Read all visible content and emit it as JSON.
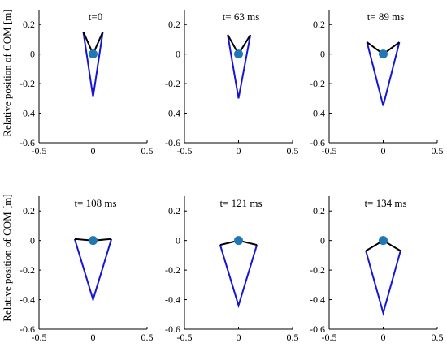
{
  "figure": {
    "ylabel": "Relative position of  COM  [m]"
  },
  "chart_data": [
    {
      "type": "line",
      "title": "t=0",
      "xlim": [
        -0.5,
        0.5
      ],
      "ylim": [
        -0.6,
        0.3
      ],
      "xticks": [
        "-0.5",
        "0",
        "0.5"
      ],
      "yticks": [
        "0.2",
        "0",
        "-0.2",
        "-0.4",
        "-0.6"
      ],
      "series": [
        {
          "color": "#1515d6",
          "x": [
            -0.09,
            0.0,
            0.09
          ],
          "y": [
            0.15,
            -0.29,
            0.15
          ]
        },
        {
          "color": "#000000",
          "x": [
            -0.09,
            0.0,
            0.09
          ],
          "y": [
            0.15,
            0.0,
            0.15
          ]
        }
      ],
      "com": {
        "x": 0,
        "y": 0,
        "color": "#1f77b4"
      }
    },
    {
      "type": "line",
      "title": "t= 63 ms",
      "xlim": [
        -0.5,
        0.5
      ],
      "ylim": [
        -0.6,
        0.3
      ],
      "xticks": [
        "-0.5",
        "0",
        "0.5"
      ],
      "yticks": [
        "0.2",
        "0",
        "-0.2",
        "-0.4",
        "-0.6"
      ],
      "series": [
        {
          "color": "#1515d6",
          "x": [
            -0.1,
            0.0,
            0.11
          ],
          "y": [
            0.13,
            -0.3,
            0.13
          ]
        },
        {
          "color": "#000000",
          "x": [
            -0.1,
            0.0,
            0.11
          ],
          "y": [
            0.13,
            0.0,
            0.13
          ]
        }
      ],
      "com": {
        "x": 0,
        "y": 0,
        "color": "#1f77b4"
      }
    },
    {
      "type": "line",
      "title": "t= 89 ms",
      "xlim": [
        -0.5,
        0.5
      ],
      "ylim": [
        -0.6,
        0.3
      ],
      "xticks": [
        "-0.5",
        "0",
        "0.5"
      ],
      "yticks": [
        "0.2",
        "0",
        "-0.2",
        "-0.4",
        "-0.6"
      ],
      "series": [
        {
          "color": "#1515d6",
          "x": [
            -0.15,
            0.0,
            0.15
          ],
          "y": [
            0.08,
            -0.35,
            0.08
          ]
        },
        {
          "color": "#000000",
          "x": [
            -0.15,
            0.0,
            0.15
          ],
          "y": [
            0.08,
            0.0,
            0.08
          ]
        }
      ],
      "com": {
        "x": 0,
        "y": 0,
        "color": "#1f77b4"
      }
    },
    {
      "type": "line",
      "title": "t= 108 ms",
      "xlim": [
        -0.5,
        0.5
      ],
      "ylim": [
        -0.6,
        0.3
      ],
      "xticks": [
        "-0.5",
        "0",
        "0.5"
      ],
      "yticks": [
        "0.2",
        "0",
        "-0.2",
        "-0.4",
        "-0.6"
      ],
      "series": [
        {
          "color": "#1515d6",
          "x": [
            -0.17,
            0.0,
            0.17
          ],
          "y": [
            0.01,
            -0.4,
            0.01
          ]
        },
        {
          "color": "#000000",
          "x": [
            -0.17,
            0.0,
            0.17
          ],
          "y": [
            0.01,
            0.0,
            0.01
          ]
        }
      ],
      "com": {
        "x": 0,
        "y": 0,
        "color": "#1f77b4"
      }
    },
    {
      "type": "line",
      "title": "t= 121 ms",
      "xlim": [
        -0.5,
        0.5
      ],
      "ylim": [
        -0.6,
        0.3
      ],
      "xticks": [
        "-0.5",
        "0",
        "0.5"
      ],
      "yticks": [
        "0.2",
        "0",
        "-0.2",
        "-0.4",
        "-0.6"
      ],
      "series": [
        {
          "color": "#1515d6",
          "x": [
            -0.17,
            0.0,
            0.17
          ],
          "y": [
            -0.03,
            -0.44,
            -0.03
          ]
        },
        {
          "color": "#000000",
          "x": [
            -0.17,
            0.0,
            0.17
          ],
          "y": [
            -0.03,
            0.0,
            -0.03
          ]
        }
      ],
      "com": {
        "x": 0,
        "y": 0,
        "color": "#1f77b4"
      }
    },
    {
      "type": "line",
      "title": "t= 134 ms",
      "xlim": [
        -0.5,
        0.5
      ],
      "ylim": [
        -0.6,
        0.3
      ],
      "xticks": [
        "-0.5",
        "0",
        "0.5"
      ],
      "yticks": [
        "0.2",
        "0",
        "-0.2",
        "-0.4",
        "-0.6"
      ],
      "series": [
        {
          "color": "#1515d6",
          "x": [
            -0.16,
            0.0,
            0.16
          ],
          "y": [
            -0.07,
            -0.49,
            -0.07
          ]
        },
        {
          "color": "#000000",
          "x": [
            -0.16,
            0.0,
            0.16
          ],
          "y": [
            -0.07,
            0.0,
            -0.07
          ]
        }
      ],
      "com": {
        "x": 0,
        "y": 0,
        "color": "#1f77b4"
      }
    }
  ]
}
